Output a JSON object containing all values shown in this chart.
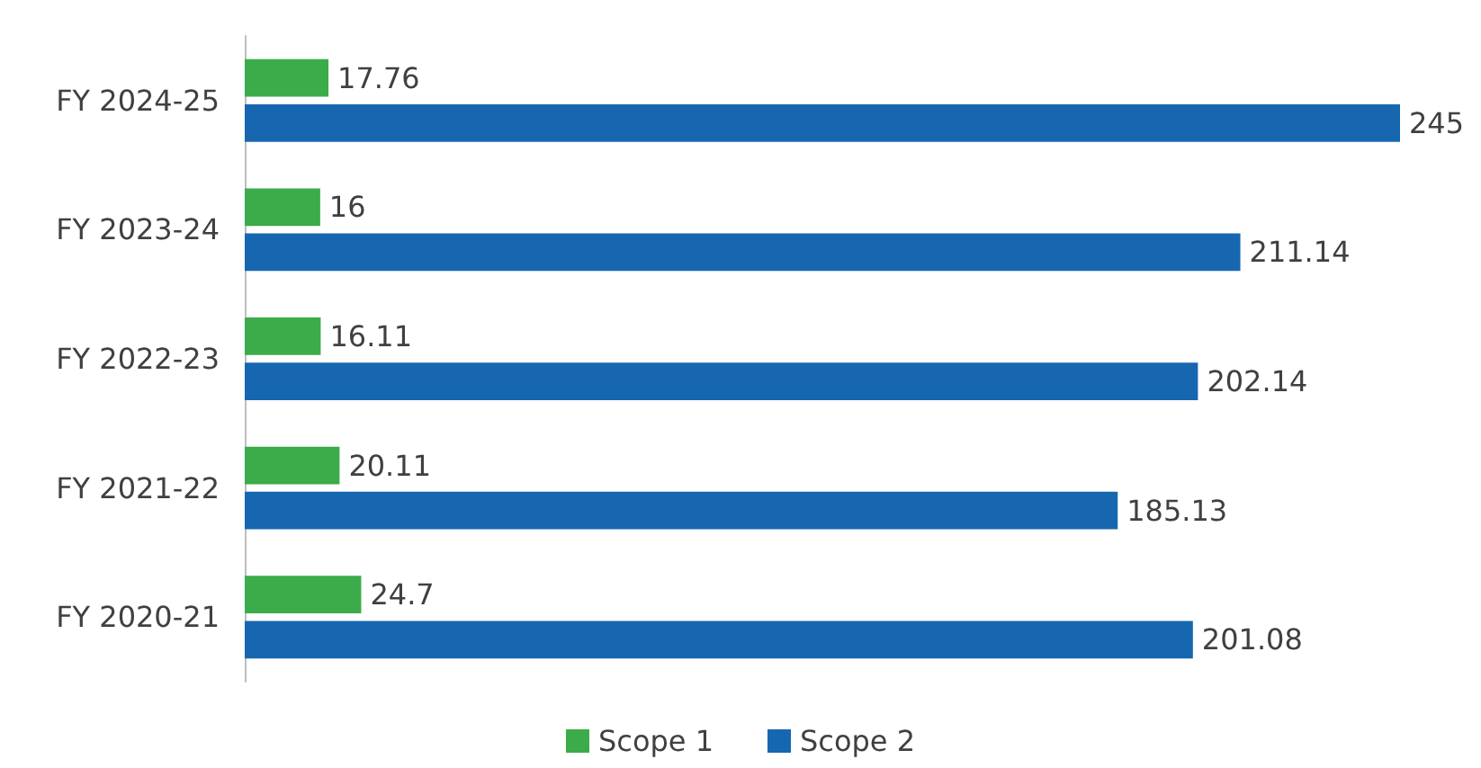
{
  "chart_data": {
    "type": "bar",
    "orientation": "horizontal",
    "categories": [
      "FY 2024-25",
      "FY 2023-24",
      "FY 2022-23",
      "FY 2021-22",
      "FY 2020-21"
    ],
    "series": [
      {
        "name": "Scope 1",
        "color": "#3cab4a",
        "values": [
          17.76,
          16,
          16.11,
          20.11,
          24.7
        ]
      },
      {
        "name": "Scope 2",
        "color": "#1667b0",
        "values": [
          245,
          211.14,
          202.14,
          185.13,
          201.08
        ]
      }
    ],
    "data_labels": true,
    "legend": "bottom",
    "grid": false
  }
}
